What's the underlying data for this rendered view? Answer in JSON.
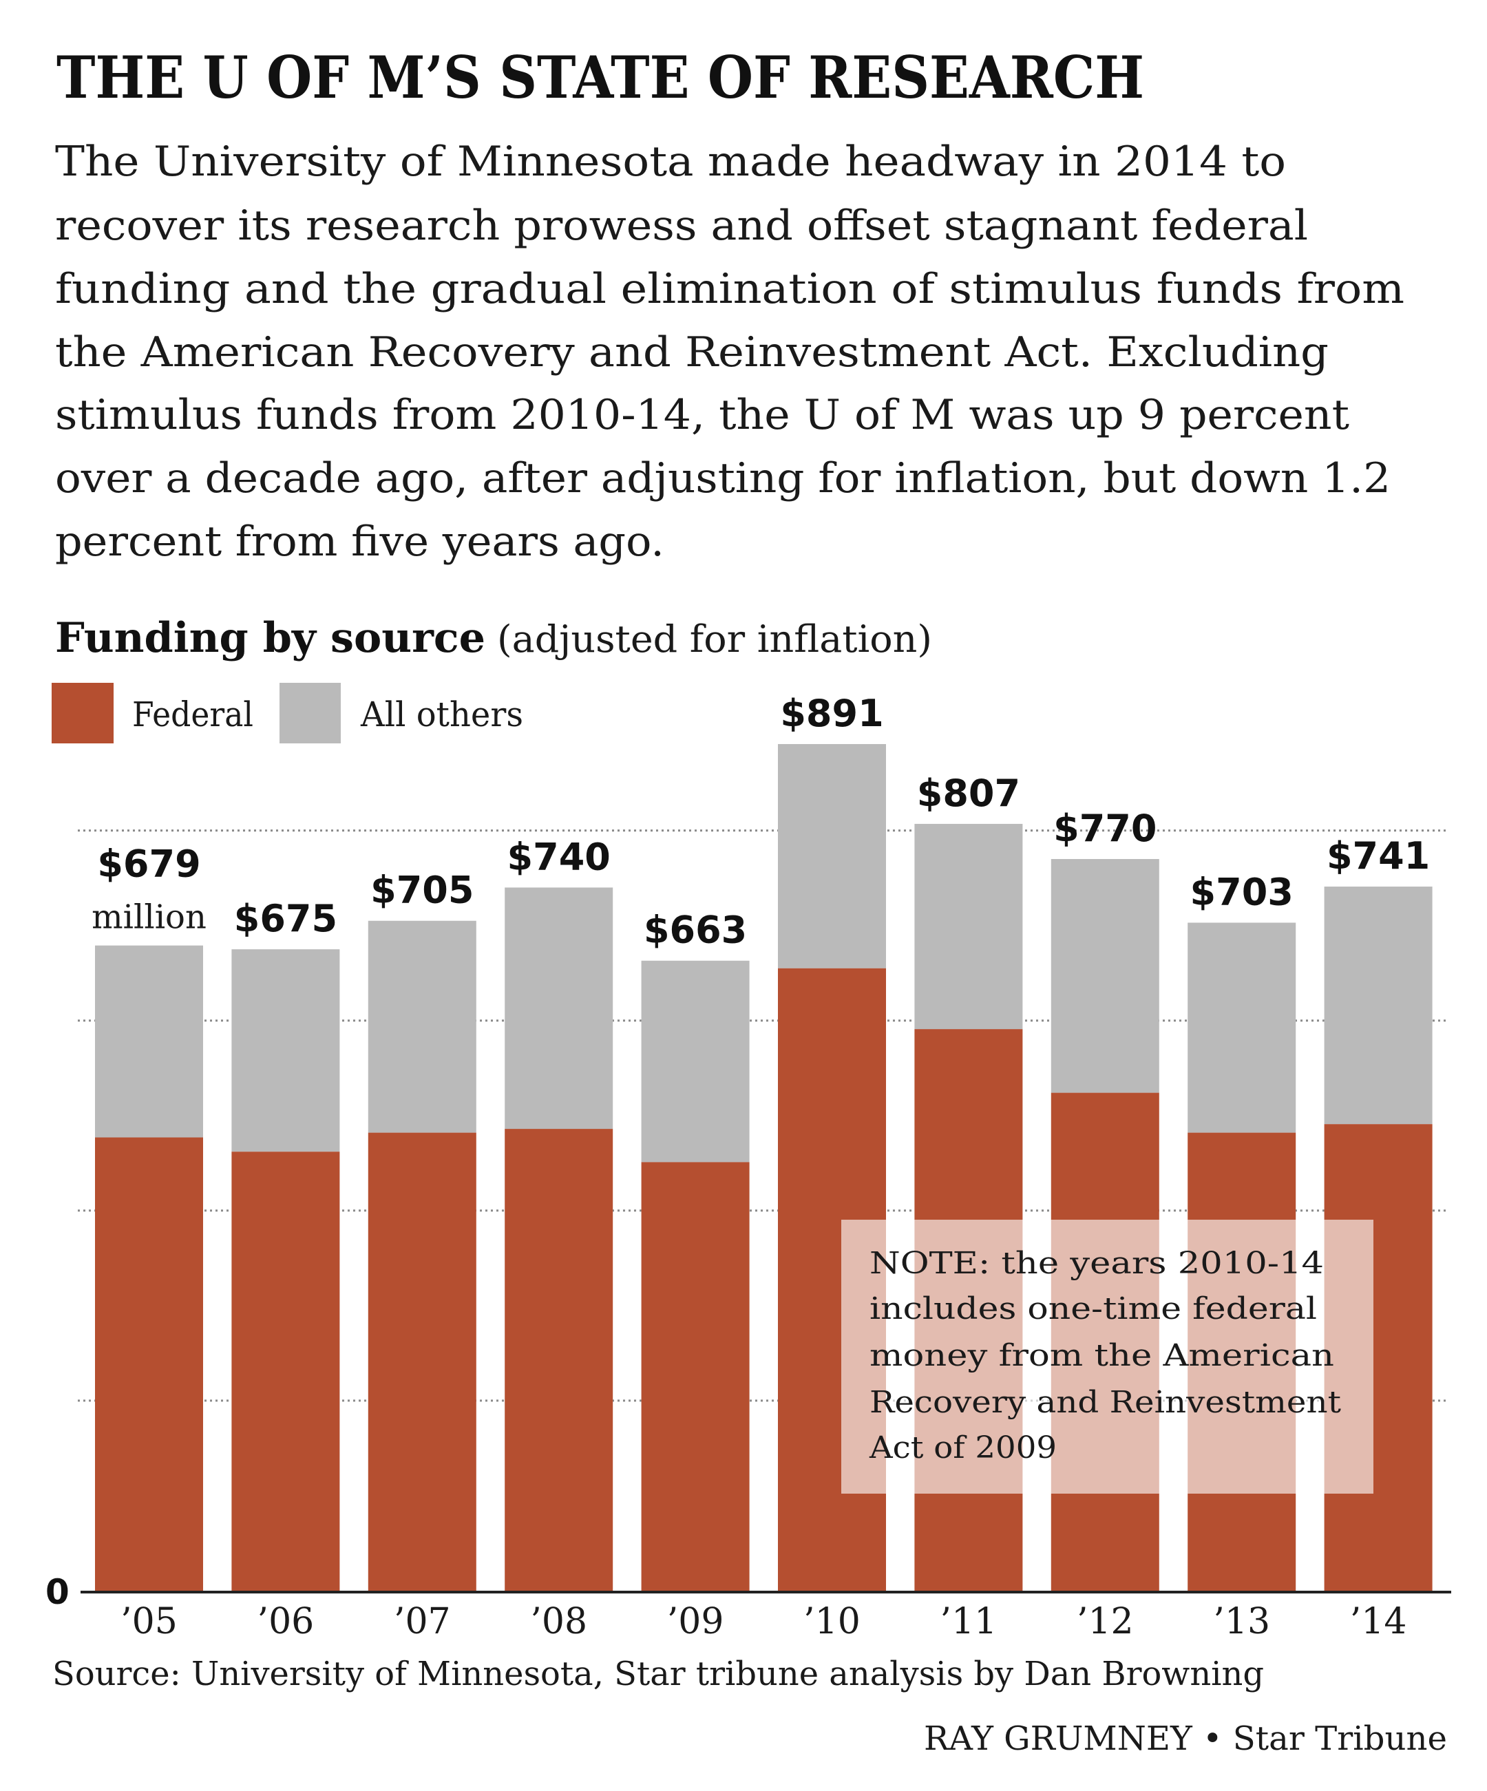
{
  "header": {
    "title": "THE U OF M’S STATE OF RESEARCH",
    "description_lines": [
      "The University of Minnesota made headway in 2014 to",
      "recover its research prowess  and offset stagnant federal",
      "funding and the gradual elimination of stimulus funds from",
      "the American Recovery and Reinvestment Act. Excluding",
      "stimulus funds from 2010-14, the U of M was up 9 percent",
      "over a decade ago, after adjusting for inflation, but down 1.2",
      "percent from five years ago."
    ]
  },
  "colors": {
    "federal": "#b54f30",
    "all_others": "#bababa",
    "note_overlay": "#ffffff"
  },
  "chart_data": {
    "type": "bar",
    "stacked": true,
    "title": "Funding by source",
    "subtitle": "(adjusted for inflation)",
    "xlabel": "",
    "ylabel": "",
    "units": "million dollars",
    "unit_label": "million",
    "categories": [
      "’05",
      "’06",
      "’07",
      "’08",
      "’09",
      "’10",
      "’11",
      "’12",
      "’13",
      "’14"
    ],
    "series": [
      {
        "name": "Federal",
        "color": "#b54f30",
        "values": [
          477,
          462,
          482,
          486,
          451,
          655,
          591,
          524,
          482,
          491
        ]
      },
      {
        "name": "All others",
        "color": "#bababa",
        "values": [
          202,
          213,
          223,
          254,
          212,
          236,
          216,
          246,
          221,
          250
        ]
      }
    ],
    "totals": [
      679,
      675,
      705,
      740,
      663,
      891,
      807,
      770,
      703,
      741
    ],
    "total_labels": [
      "$679",
      "$675",
      "$705",
      "$740",
      "$663",
      "$891",
      "$807",
      "$770",
      "$703",
      "$741"
    ],
    "ylim": [
      0,
      800
    ],
    "gridlines": [
      200,
      400,
      600,
      800
    ],
    "y_tick_labels": [
      "0"
    ],
    "grid": true,
    "grid_style": "dotted",
    "legend": {
      "placement": "top-left",
      "entries": [
        {
          "label": "Federal",
          "color": "#b54f30"
        },
        {
          "label": "All others",
          "color": "#bababa"
        }
      ]
    },
    "annotations": [
      {
        "type": "note-box",
        "lines": [
          "NOTE: the years 2010-14",
          "includes one-time federal",
          "money from the American",
          "Recovery and Reinvestment",
          "Act of 2009"
        ]
      }
    ]
  },
  "footer": {
    "source": "Source: University of Minnesota, Star tribune analysis by Dan Browning",
    "credit": "RAY GRUMNEY • Star Tribune"
  }
}
